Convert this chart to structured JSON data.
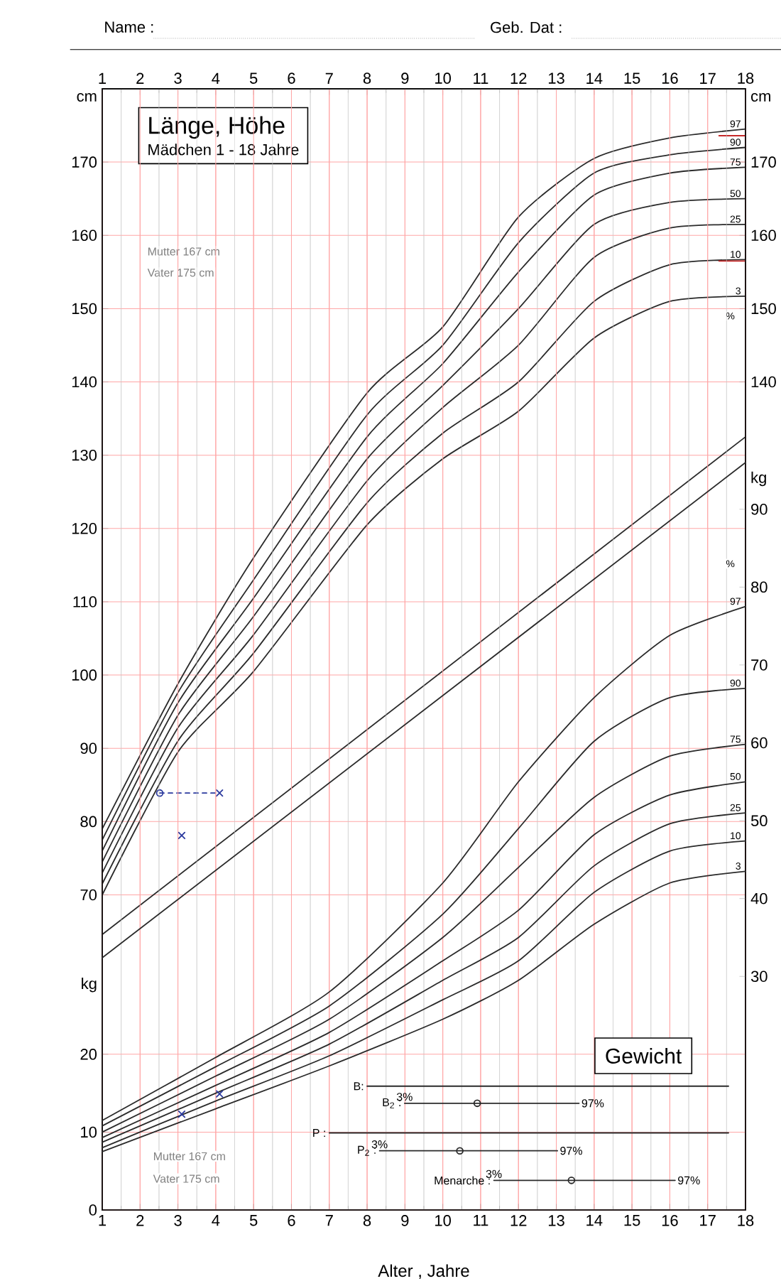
{
  "chart_data": [
    {
      "type": "line",
      "title": "Länge, Höhe",
      "subtitle": "Mädchen  1 - 18 Jahre",
      "ylabel": "cm",
      "y2label": "cm",
      "x": [
        1,
        3,
        5,
        8,
        10,
        12,
        14,
        16,
        18
      ],
      "xlim": [
        1,
        18
      ],
      "xticks": [
        1,
        2,
        3,
        4,
        5,
        6,
        7,
        8,
        9,
        10,
        11,
        12,
        13,
        14,
        15,
        16,
        17,
        18
      ],
      "ylim": [
        27,
        180
      ],
      "yticks": [
        70,
        80,
        90,
        100,
        110,
        120,
        130,
        140,
        150,
        160,
        170
      ],
      "y2lim": [
        27,
        180
      ],
      "y2ticks": [
        140,
        150,
        160,
        170
      ],
      "grid": true,
      "annotations": [
        "Name :",
        "Geb. Dat :",
        "Mutter 167 cm",
        "Vater 175 cm",
        "%"
      ],
      "series": [
        {
          "name": "3",
          "color": "#2b2b2b",
          "values": [
            70,
            89.5,
            100.5,
            120.5,
            129.5,
            136,
            146,
            151,
            151.7
          ]
        },
        {
          "name": "10",
          "color": "#2b2b2b",
          "values": [
            71.5,
            91,
            103,
            123.5,
            133,
            140,
            151,
            156,
            156.7
          ]
        },
        {
          "name": "25",
          "color": "#2b2b2b",
          "values": [
            73,
            92.8,
            105.5,
            126.5,
            136.5,
            145,
            157,
            161,
            161.5
          ]
        },
        {
          "name": "50",
          "color": "#2b2b2b",
          "values": [
            74.5,
            94.5,
            108,
            129.5,
            139.5,
            150,
            161.5,
            164.5,
            165
          ]
        },
        {
          "name": "75",
          "color": "#2b2b2b",
          "values": [
            76,
            96.2,
            110.5,
            132.5,
            142.5,
            155,
            165.5,
            168.5,
            169.3
          ]
        },
        {
          "name": "90",
          "color": "#2b2b2b",
          "values": [
            77.5,
            97.6,
            113,
            135.5,
            145,
            159,
            168.5,
            171,
            172
          ]
        },
        {
          "name": "97",
          "color": "#2b2b2b",
          "values": [
            79,
            98.8,
            116,
            138.5,
            147.5,
            162.5,
            170.5,
            173.3,
            174.5
          ]
        },
        {
          "color": "#2b2b2b",
          "x": [
            1,
            18
          ],
          "values": [
            64.6,
            132.5
          ]
        },
        {
          "type": "scatter",
          "marker": "circle",
          "color": "#2b3a9e",
          "x": [
            2.52
          ],
          "values": [
            83.9
          ]
        },
        {
          "type": "scatter",
          "marker": "cross",
          "color": "#2b3a9e",
          "x": [
            3.1,
            4.1
          ],
          "values": [
            78.1,
            83.9
          ]
        },
        {
          "line_style": "dashed",
          "color": "#2b3a9e",
          "x": [
            2.52,
            4.1
          ],
          "values": [
            83.9,
            83.9
          ]
        },
        {
          "color": "#c62828",
          "x": [
            17.3,
            18
          ],
          "values": [
            173.6,
            173.6
          ]
        },
        {
          "color": "#c62828",
          "x": [
            17.3,
            18
          ],
          "values": [
            156.5,
            156.5
          ]
        }
      ]
    },
    {
      "type": "line",
      "title": "Gewicht",
      "xlabel": "Alter  ,  Jahre",
      "ylabel": "kg",
      "y2label": "kg",
      "x": [
        1,
        4,
        7,
        10,
        12,
        14,
        16,
        18
      ],
      "xlim": [
        1,
        18
      ],
      "xticks": [
        1,
        2,
        3,
        4,
        5,
        6,
        7,
        8,
        9,
        10,
        11,
        12,
        13,
        14,
        15,
        16,
        17,
        18
      ],
      "ylim": [
        0,
        144
      ],
      "yticks": [
        0,
        10,
        20
      ],
      "y2lim": [
        0,
        144
      ],
      "y2ticks": [
        30,
        40,
        50,
        60,
        70,
        80,
        90
      ],
      "grid": true,
      "annotations": [
        "Mutter 167 cm",
        "Vater 175 cm",
        "%",
        {
          "text": "3%",
          "x": 8.99,
          "y": 13.7
        },
        {
          "text": "97%",
          "x": 13.6,
          "y": 13.7
        },
        {
          "text": "3%",
          "x": 8.33,
          "y": 7.6
        },
        {
          "text": "97%",
          "x": 13.03,
          "y": 7.6
        },
        {
          "text": "3%",
          "x": 11.35,
          "y": 3.8
        },
        {
          "text": "97%",
          "x": 16.14,
          "y": 3.8
        }
      ],
      "series": [
        {
          "name": "3",
          "color": "#2b2b2b",
          "values": [
            7.5,
            13,
            18.5,
            24.5,
            29.5,
            36.7,
            42,
            43.5
          ]
        },
        {
          "name": "10",
          "color": "#2b2b2b",
          "values": [
            8,
            14,
            19.8,
            27,
            32,
            40.8,
            46.1,
            47.4
          ]
        },
        {
          "name": "25",
          "color": "#2b2b2b",
          "values": [
            8.7,
            15,
            21.3,
            29.5,
            35,
            44.2,
            49.6,
            51
          ]
        },
        {
          "name": "50",
          "color": "#2b2b2b",
          "values": [
            9.3,
            16,
            22.8,
            32,
            38.5,
            48.2,
            53.3,
            55
          ]
        },
        {
          "name": "75",
          "color": "#2b2b2b",
          "values": [
            10,
            17.2,
            24.5,
            35,
            44,
            53,
            58.3,
            59.8
          ]
        },
        {
          "name": "90",
          "color": "#2b2b2b",
          "values": [
            10.8,
            18.4,
            26.2,
            38,
            49,
            60.2,
            65.8,
            67
          ]
        },
        {
          "name": "97",
          "color": "#2b2b2b",
          "values": [
            11.5,
            19.6,
            28,
            42,
            55,
            65.8,
            73.8,
            77.5
          ]
        },
        {
          "color": "#2b2b2b",
          "x": [
            1,
            18
          ],
          "values": [
            32.4,
            96
          ]
        },
        {
          "type": "scatter",
          "marker": "cross",
          "color": "#2b3a9e",
          "x": [
            3.1,
            4.1
          ],
          "values": [
            12.3,
            14.9
          ]
        },
        {
          "name": "B:",
          "color": "#2b2b2b",
          "x": [
            8.0,
            17.55
          ],
          "values": [
            15.9,
            15.9
          ]
        },
        {
          "name": "B$_{2}$ :",
          "color": "#2b2b2b",
          "x": [
            8.99,
            13.6
          ],
          "values": [
            13.7,
            13.7
          ]
        },
        {
          "name": "P :",
          "color": "#2b2b2b",
          "x": [
            7.0,
            17.55
          ],
          "values": [
            9.9,
            9.9
          ]
        },
        {
          "name": "P$_{2}$ :",
          "color": "#2b2b2b",
          "x": [
            8.33,
            13.03
          ],
          "values": [
            7.6,
            7.6
          ]
        },
        {
          "name": "Menarche :",
          "color": "#2b2b2b",
          "x": [
            11.35,
            16.14
          ],
          "values": [
            3.8,
            3.8
          ]
        },
        {
          "type": "scatter",
          "marker": "circle",
          "color": "#2b2b2b",
          "x": [
            10.91,
            10.45,
            13.4
          ],
          "values": [
            13.7,
            7.6,
            3.8
          ]
        }
      ]
    }
  ]
}
